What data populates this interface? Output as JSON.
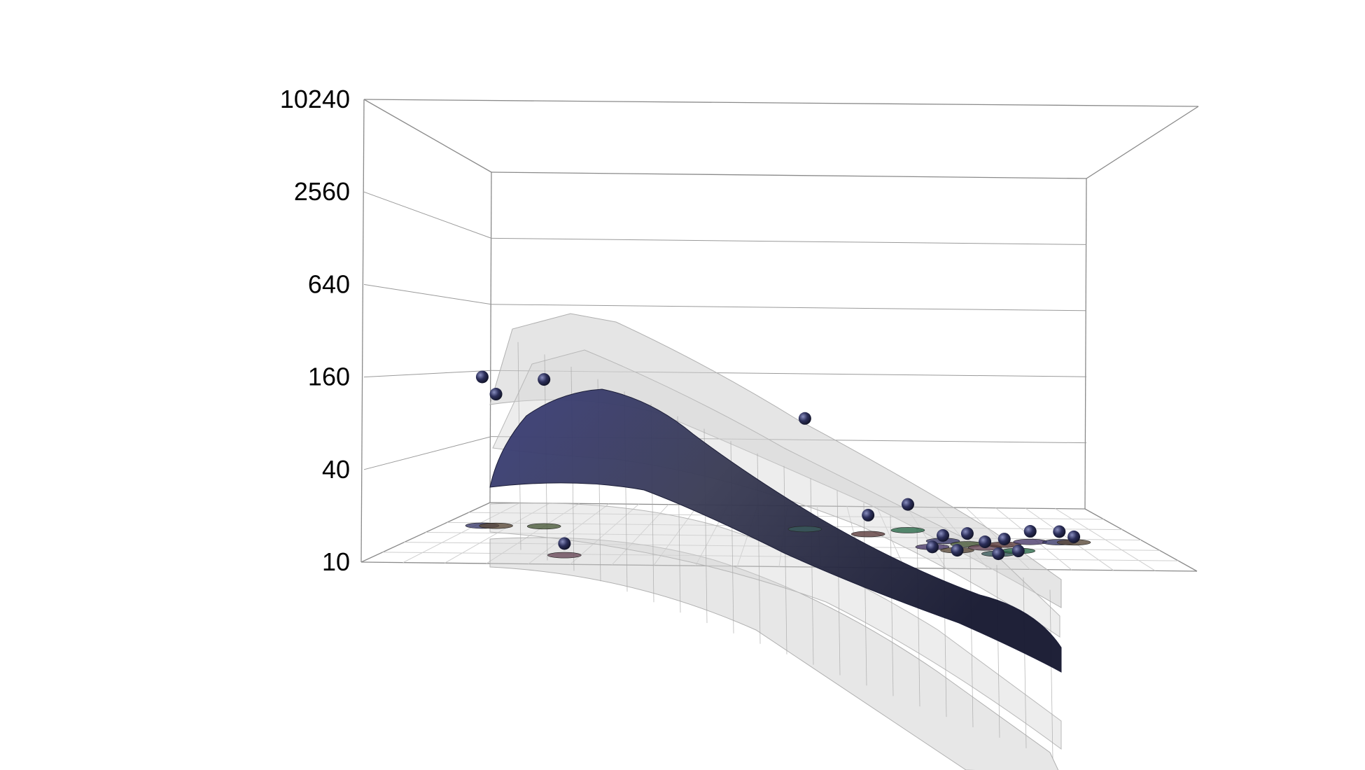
{
  "chart_data": {
    "type": "scatter",
    "title": "",
    "xlabel": "",
    "ylabel": "",
    "zlabel": "",
    "z_scale": "log",
    "z_ticks": [
      "10",
      "20",
      "40",
      "80",
      "160",
      "320",
      "640",
      "1280",
      "2560",
      "5120",
      "10240"
    ],
    "z_tick_labels": [
      "10240",
      "2560",
      "640",
      "160",
      "40",
      "10"
    ],
    "zlim": [
      10,
      10240
    ],
    "grid": true,
    "legend": "none",
    "colors": {
      "fit_surface": "#2f3266",
      "confidence_surfaces": "#d6d6d6",
      "points": "#2a2d55",
      "box_lines": "#8a8a8a"
    },
    "points": [
      {
        "x": 0.06,
        "y": 0.62,
        "z": 150
      },
      {
        "x": 0.08,
        "y": 0.62,
        "z": 110
      },
      {
        "x": 0.15,
        "y": 0.62,
        "z": 145
      },
      {
        "x": 0.23,
        "y": 0.15,
        "z": 12
      },
      {
        "x": 0.53,
        "y": 0.62,
        "z": 75
      },
      {
        "x": 0.62,
        "y": 0.55,
        "z": 14
      },
      {
        "x": 0.68,
        "y": 0.62,
        "z": 16
      },
      {
        "x": 0.7,
        "y": 0.35,
        "z": 10
      },
      {
        "x": 0.72,
        "y": 0.45,
        "z": 11
      },
      {
        "x": 0.73,
        "y": 0.3,
        "z": 10
      },
      {
        "x": 0.75,
        "y": 0.4,
        "z": 12
      },
      {
        "x": 0.77,
        "y": 0.35,
        "z": 11
      },
      {
        "x": 0.78,
        "y": 0.25,
        "z": 10
      },
      {
        "x": 0.8,
        "y": 0.4,
        "z": 11
      },
      {
        "x": 0.81,
        "y": 0.3,
        "z": 10
      },
      {
        "x": 0.84,
        "y": 0.45,
        "z": 12
      },
      {
        "x": 0.88,
        "y": 0.45,
        "z": 12
      },
      {
        "x": 0.9,
        "y": 0.45,
        "z": 11
      }
    ]
  }
}
